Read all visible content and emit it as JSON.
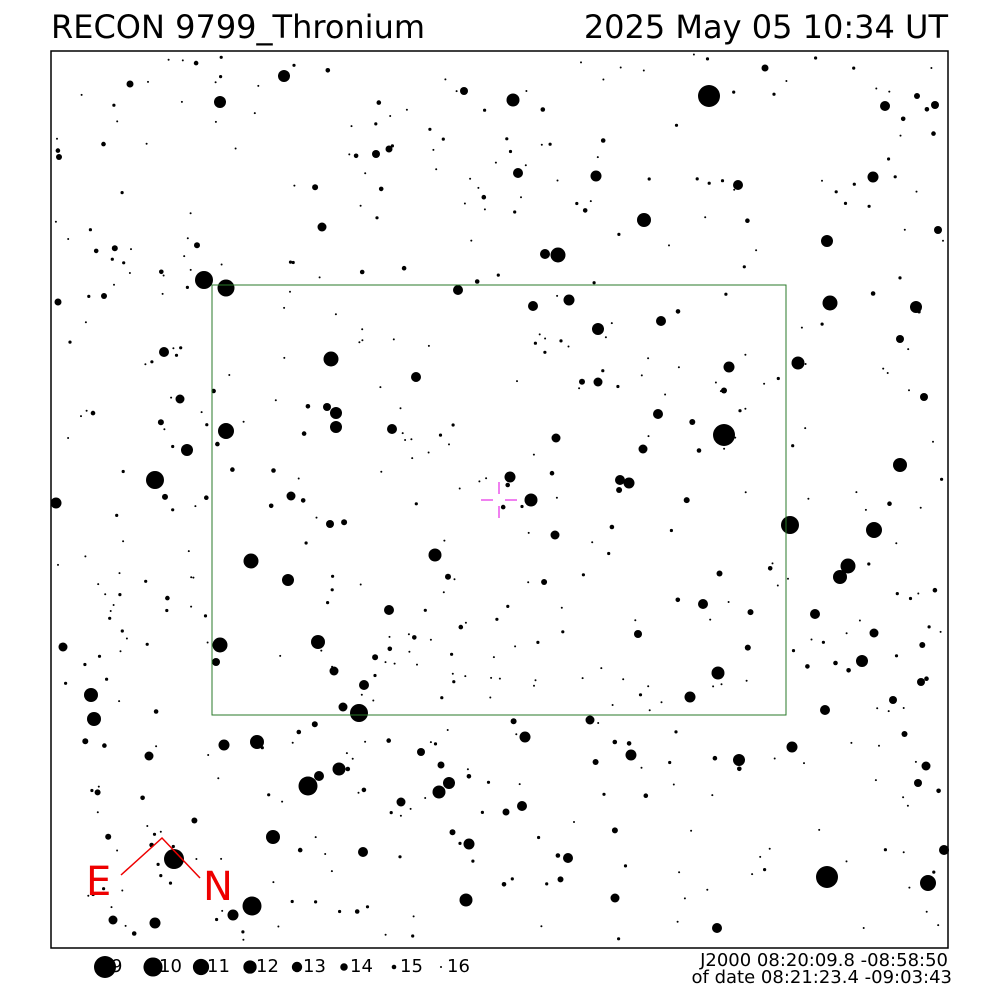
{
  "header": {
    "title": "RECON 9799_Thronium",
    "date": "2025 May 05 10:34 UT"
  },
  "compass": {
    "east": "E",
    "north": "N"
  },
  "legend": {
    "magnitudes": [
      9,
      10,
      11,
      12,
      13,
      14,
      15,
      16
    ]
  },
  "coordinates": {
    "j2000": "J2000 08:20:09.8 -08:58:50",
    "of_date": "of date 08:21:23.4 -09:03:43"
  }
}
